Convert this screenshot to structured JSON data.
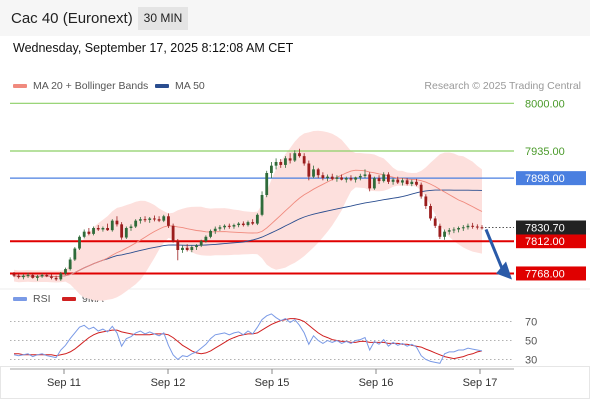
{
  "header": {
    "title": "Cac 40 (Euronext)",
    "timeframe": "30 MIN",
    "timestamp": "Wednesday, September 17, 2025 8:12:08 AM CET",
    "credit": "Research © 2025 Trading Central"
  },
  "colors": {
    "up": "#2f6b3a",
    "down": "#9b1d1d",
    "ma20": "#f08a7e",
    "bands": "#fde0dd",
    "ma50": "#2a4d8f",
    "pivot": "#4a7fe0",
    "support": "#e00000",
    "resistance": "#8ccf66",
    "rsi": "#7a9ae6",
    "rsi_ma": "#d02020",
    "arrow": "#2a5aa8"
  },
  "legend": {
    "ma20": "MA 20 + Bollinger Bands",
    "ma50": "MA 50",
    "rsi": "RSI",
    "rsi_ma": "9MA"
  },
  "chart_data": [
    {
      "type": "candlestick",
      "ylim": [
        7755,
        8010
      ],
      "x_labels": [
        "Sep 11",
        "Sep 12",
        "Sep 15",
        "Sep 16",
        "Sep 17"
      ],
      "levels": [
        {
          "label": "8000.00",
          "value": 8000,
          "kind": "resistance"
        },
        {
          "label": "7935.00",
          "value": 7935,
          "kind": "resistance"
        },
        {
          "label": "7898.00",
          "value": 7898,
          "kind": "pivot"
        },
        {
          "label": "7812.00",
          "value": 7812,
          "kind": "support"
        },
        {
          "label": "7768.00",
          "value": 7768,
          "kind": "support"
        }
      ],
      "last_price": {
        "label": "7830.70",
        "value": 7830.7
      },
      "ohlc": [
        [
          7767,
          7770,
          7763,
          7765
        ],
        [
          7765,
          7768,
          7761,
          7763
        ],
        [
          7763,
          7767,
          7760,
          7765
        ],
        [
          7765,
          7769,
          7762,
          7766
        ],
        [
          7766,
          7768,
          7761,
          7762
        ],
        [
          7762,
          7766,
          7758,
          7764
        ],
        [
          7764,
          7768,
          7762,
          7766
        ],
        [
          7766,
          7769,
          7763,
          7764
        ],
        [
          7764,
          7767,
          7760,
          7762
        ],
        [
          7762,
          7765,
          7758,
          7760
        ],
        [
          7760,
          7770,
          7758,
          7768
        ],
        [
          7768,
          7776,
          7766,
          7774
        ],
        [
          7774,
          7790,
          7772,
          7787
        ],
        [
          7787,
          7804,
          7785,
          7802
        ],
        [
          7802,
          7820,
          7800,
          7818
        ],
        [
          7818,
          7828,
          7816,
          7825
        ],
        [
          7825,
          7830,
          7820,
          7822
        ],
        [
          7822,
          7832,
          7820,
          7830
        ],
        [
          7830,
          7834,
          7826,
          7828
        ],
        [
          7828,
          7832,
          7825,
          7830
        ],
        [
          7830,
          7836,
          7826,
          7827
        ],
        [
          7827,
          7842,
          7825,
          7840
        ],
        [
          7840,
          7846,
          7832,
          7835
        ],
        [
          7835,
          7838,
          7814,
          7817
        ],
        [
          7817,
          7832,
          7815,
          7830
        ],
        [
          7830,
          7835,
          7826,
          7832
        ],
        [
          7832,
          7842,
          7830,
          7840
        ],
        [
          7840,
          7845,
          7836,
          7842
        ],
        [
          7842,
          7846,
          7838,
          7841
        ],
        [
          7841,
          7845,
          7837,
          7843
        ],
        [
          7843,
          7847,
          7839,
          7842
        ],
        [
          7842,
          7846,
          7838,
          7840
        ],
        [
          7840,
          7848,
          7838,
          7846
        ],
        [
          7846,
          7850,
          7830,
          7833
        ],
        [
          7833,
          7836,
          7810,
          7812
        ],
        [
          7812,
          7815,
          7786,
          7800
        ],
        [
          7800,
          7806,
          7796,
          7803
        ],
        [
          7803,
          7808,
          7798,
          7800
        ],
        [
          7800,
          7806,
          7797,
          7804
        ],
        [
          7804,
          7808,
          7800,
          7806
        ],
        [
          7806,
          7814,
          7804,
          7812
        ],
        [
          7812,
          7820,
          7810,
          7818
        ],
        [
          7818,
          7828,
          7816,
          7826
        ],
        [
          7826,
          7832,
          7822,
          7829
        ],
        [
          7829,
          7834,
          7826,
          7831
        ],
        [
          7831,
          7835,
          7828,
          7833
        ],
        [
          7833,
          7836,
          7829,
          7832
        ],
        [
          7832,
          7836,
          7829,
          7834
        ],
        [
          7834,
          7838,
          7831,
          7836
        ],
        [
          7836,
          7839,
          7832,
          7834
        ],
        [
          7834,
          7840,
          7832,
          7838
        ],
        [
          7838,
          7842,
          7834,
          7836
        ],
        [
          7836,
          7850,
          7834,
          7848
        ],
        [
          7848,
          7880,
          7846,
          7875
        ],
        [
          7875,
          7908,
          7872,
          7905
        ],
        [
          7905,
          7920,
          7898,
          7915
        ],
        [
          7915,
          7925,
          7910,
          7920
        ],
        [
          7920,
          7924,
          7912,
          7916
        ],
        [
          7916,
          7928,
          7912,
          7925
        ],
        [
          7925,
          7932,
          7918,
          7922
        ],
        [
          7922,
          7936,
          7920,
          7932
        ],
        [
          7932,
          7938,
          7926,
          7928
        ],
        [
          7928,
          7932,
          7915,
          7918
        ],
        [
          7918,
          7922,
          7895,
          7900
        ],
        [
          7900,
          7915,
          7898,
          7910
        ],
        [
          7910,
          7912,
          7898,
          7902
        ],
        [
          7902,
          7906,
          7895,
          7898
        ],
        [
          7898,
          7903,
          7894,
          7900
        ],
        [
          7900,
          7904,
          7895,
          7897
        ],
        [
          7897,
          7902,
          7893,
          7899
        ],
        [
          7899,
          7903,
          7895,
          7896
        ],
        [
          7896,
          7900,
          7892,
          7898
        ],
        [
          7898,
          7902,
          7894,
          7896
        ],
        [
          7896,
          7900,
          7892,
          7899
        ],
        [
          7899,
          7904,
          7895,
          7901
        ],
        [
          7901,
          7910,
          7898,
          7903
        ],
        [
          7903,
          7906,
          7880,
          7884
        ],
        [
          7884,
          7900,
          7882,
          7898
        ],
        [
          7898,
          7902,
          7890,
          7894
        ],
        [
          7894,
          7906,
          7892,
          7903
        ],
        [
          7903,
          7906,
          7890,
          7893
        ],
        [
          7893,
          7898,
          7889,
          7896
        ],
        [
          7896,
          7900,
          7890,
          7892
        ],
        [
          7892,
          7898,
          7888,
          7895
        ],
        [
          7895,
          7898,
          7888,
          7890
        ],
        [
          7890,
          7896,
          7887,
          7893
        ],
        [
          7893,
          7897,
          7887,
          7889
        ],
        [
          7889,
          7892,
          7870,
          7873
        ],
        [
          7873,
          7876,
          7856,
          7860
        ],
        [
          7860,
          7863,
          7840,
          7843
        ],
        [
          7843,
          7846,
          7830,
          7833
        ],
        [
          7833,
          7836,
          7815,
          7818
        ],
        [
          7818,
          7828,
          7814,
          7825
        ],
        [
          7825,
          7830,
          7821,
          7827
        ],
        [
          7827,
          7831,
          7823,
          7828
        ],
        [
          7828,
          7832,
          7824,
          7830
        ],
        [
          7830,
          7834,
          7826,
          7831
        ],
        [
          7831,
          7836,
          7828,
          7833
        ],
        [
          7833,
          7837,
          7829,
          7832
        ],
        [
          7832,
          7835,
          7828,
          7831
        ],
        [
          7831,
          7834,
          7828,
          7830.7
        ]
      ]
    },
    {
      "type": "line",
      "name": "RSI",
      "ylim": [
        20,
        80
      ],
      "y_ticks": [
        "70",
        "50",
        "30"
      ],
      "rsi": [
        35,
        34,
        35,
        36,
        33,
        35,
        36,
        34,
        33,
        32,
        40,
        45,
        52,
        58,
        64,
        66,
        62,
        64,
        60,
        62,
        59,
        65,
        58,
        44,
        52,
        54,
        58,
        60,
        57,
        59,
        57,
        55,
        58,
        45,
        35,
        30,
        34,
        33,
        36,
        38,
        42,
        46,
        52,
        56,
        57,
        58,
        56,
        58,
        59,
        56,
        60,
        57,
        64,
        72,
        76,
        78,
        74,
        71,
        73,
        69,
        72,
        66,
        58,
        46,
        55,
        50,
        47,
        50,
        48,
        50,
        47,
        49,
        47,
        50,
        51,
        53,
        40,
        49,
        46,
        51,
        44,
        48,
        45,
        47,
        44,
        46,
        43,
        34,
        30,
        28,
        27,
        26,
        36,
        38,
        38,
        40,
        40,
        42,
        41,
        40,
        39
      ],
      "rsi_ma": [
        36,
        36,
        35,
        35,
        35,
        35,
        35,
        35,
        35,
        34,
        35,
        36,
        38,
        41,
        45,
        49,
        53,
        56,
        58,
        59,
        60,
        61,
        61,
        59,
        58,
        57,
        56,
        56,
        56,
        56,
        57,
        57,
        57,
        56,
        53,
        49,
        45,
        42,
        39,
        37,
        36,
        37,
        39,
        42,
        45,
        48,
        51,
        53,
        55,
        56,
        57,
        57,
        58,
        61,
        64,
        67,
        69,
        71,
        72,
        73,
        73,
        72,
        70,
        66,
        62,
        58,
        55,
        53,
        51,
        50,
        49,
        49,
        48,
        48,
        49,
        49,
        48,
        48,
        48,
        48,
        47,
        47,
        47,
        46,
        46,
        45,
        44,
        43,
        41,
        39,
        37,
        35,
        33,
        32,
        31,
        32,
        33,
        35,
        36,
        38,
        39
      ]
    }
  ]
}
